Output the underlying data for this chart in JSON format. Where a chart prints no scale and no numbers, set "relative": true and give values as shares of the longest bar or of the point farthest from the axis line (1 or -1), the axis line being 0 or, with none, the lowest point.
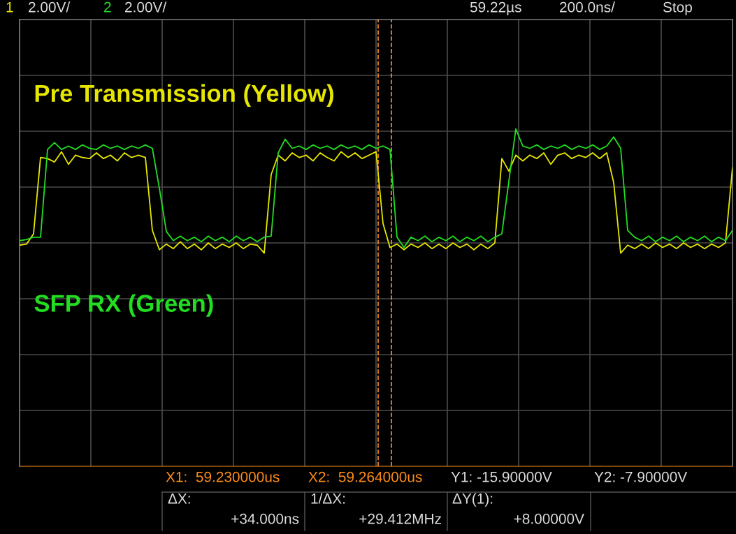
{
  "chart_data": {
    "type": "line",
    "relative": true,
    "grid": true,
    "marker": "none",
    "line_style": "solid",
    "categories": [
      null,
      null,
      null,
      null,
      null,
      null,
      null,
      null,
      null,
      null,
      null,
      null,
      null,
      null,
      null,
      null,
      null,
      null,
      null,
      null,
      null,
      null,
      null,
      null,
      null,
      null,
      null,
      null,
      null,
      null,
      null,
      null,
      null,
      null,
      null,
      null,
      null,
      null,
      null,
      null,
      null,
      null,
      null,
      null,
      null,
      null,
      null,
      null,
      null,
      null,
      null,
      null,
      null,
      null,
      null,
      null,
      null,
      null,
      null,
      null,
      null,
      null,
      null,
      null,
      null,
      null,
      null,
      null,
      null,
      null,
      null,
      null,
      null,
      null,
      null,
      null,
      null,
      null,
      null,
      null,
      null,
      null,
      null,
      null,
      null,
      null,
      null,
      null,
      null,
      null,
      null,
      null,
      null,
      null,
      null,
      null,
      null,
      null,
      null,
      null,
      null,
      null,
      null
    ],
    "series": [
      {
        "name": "Pre Transmission (Yellow)",
        "color": "#e6e600",
        "values": [
          -0.02,
          -0.01,
          0.08,
          0.75,
          0.74,
          0.71,
          0.8,
          0.69,
          0.77,
          0.75,
          0.74,
          0.79,
          0.74,
          0.77,
          0.72,
          0.79,
          0.75,
          0.77,
          0.75,
          0.11,
          -0.06,
          -0.01,
          -0.05,
          0.01,
          -0.05,
          -0.01,
          -0.06,
          0.0,
          -0.05,
          -0.01,
          -0.04,
          0.0,
          -0.05,
          -0.01,
          -0.02,
          -0.09,
          0.6,
          0.77,
          0.72,
          0.79,
          0.75,
          0.77,
          0.72,
          0.79,
          0.75,
          0.72,
          0.8,
          0.75,
          0.79,
          0.74,
          0.77,
          0.8,
          0.17,
          -0.04,
          -0.01,
          -0.06,
          -0.01,
          -0.04,
          0.0,
          -0.05,
          -0.01,
          -0.05,
          0.0,
          -0.04,
          -0.01,
          -0.06,
          -0.01,
          -0.05,
          0.0,
          0.74,
          0.63,
          0.77,
          0.72,
          0.77,
          0.74,
          0.79,
          0.69,
          0.77,
          0.79,
          0.74,
          0.77,
          0.75,
          0.79,
          0.74,
          0.79,
          0.53,
          -0.09,
          -0.02,
          -0.05,
          -0.01,
          -0.05,
          0.0,
          -0.04,
          -0.01,
          -0.05,
          0.0,
          -0.04,
          -0.01,
          -0.05,
          -0.01,
          -0.04,
          0.0,
          0.66
        ]
      },
      {
        "name": "SFP RX (Green)",
        "color": "#22dd22",
        "values": [
          0.02,
          0.03,
          0.05,
          0.05,
          0.82,
          0.88,
          0.82,
          0.85,
          0.82,
          0.86,
          0.83,
          0.82,
          0.86,
          0.83,
          0.85,
          0.82,
          0.85,
          0.83,
          0.86,
          0.83,
          0.48,
          0.1,
          0.02,
          0.06,
          0.02,
          0.05,
          0.01,
          0.06,
          0.02,
          0.05,
          0.01,
          0.06,
          0.02,
          0.05,
          0.01,
          0.05,
          0.06,
          0.79,
          0.91,
          0.83,
          0.85,
          0.82,
          0.86,
          0.83,
          0.85,
          0.82,
          0.86,
          0.83,
          0.85,
          0.82,
          0.86,
          0.83,
          0.85,
          0.82,
          0.05,
          -0.04,
          0.05,
          0.02,
          0.06,
          0.01,
          0.05,
          0.02,
          0.06,
          0.01,
          0.05,
          0.02,
          0.06,
          0.01,
          0.05,
          0.08,
          0.54,
          1.0,
          0.85,
          0.83,
          0.86,
          0.82,
          0.85,
          0.83,
          0.86,
          0.82,
          0.85,
          0.83,
          0.86,
          0.82,
          0.85,
          0.93,
          0.83,
          0.11,
          0.05,
          0.02,
          0.06,
          0.01,
          0.05,
          0.02,
          0.06,
          0.01,
          0.05,
          0.02,
          0.06,
          0.01,
          0.05,
          0.02,
          0.11
        ]
      }
    ],
    "annotations": [
      "1",
      "2.00V/",
      "2",
      "2.00V/",
      "59.22µs",
      "200.0ns/",
      "Stop",
      "X1:  59.230000us",
      "X2:  59.264000us",
      "Y1: -15.90000V",
      "Y2: -7.90000V",
      "ΔX:",
      "+34.000ns",
      "1/ΔX:",
      "+29.412MHz",
      "ΔY(1):",
      "+8.00000V"
    ]
  }
}
